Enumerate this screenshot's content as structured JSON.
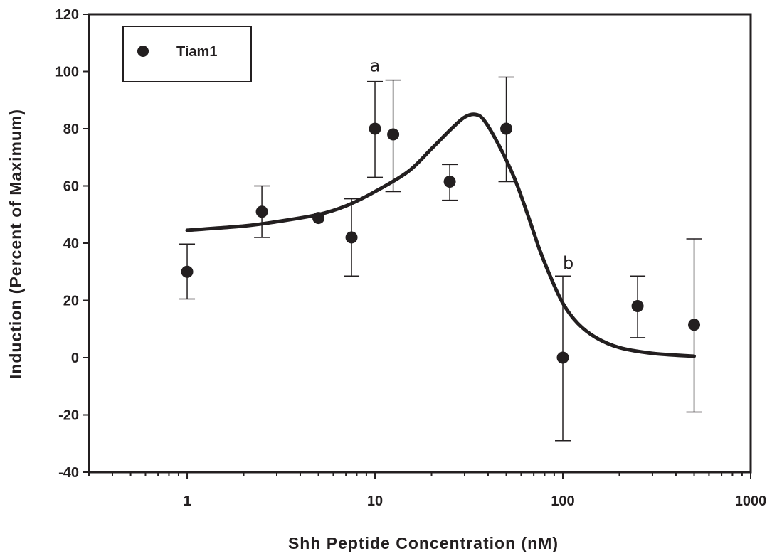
{
  "chart_data": {
    "type": "scatter",
    "title": "",
    "xlabel": "Shh Peptide Concentration (nM)",
    "ylabel": "Induction (Percent of Maximum)",
    "xscale": "log",
    "xlim": [
      0.3,
      1000
    ],
    "ylim": [
      -40,
      120
    ],
    "xticks": [
      1,
      10,
      100,
      1000
    ],
    "xtick_labels": [
      "1",
      "10",
      "100",
      "1000"
    ],
    "yticks": [
      -40,
      -20,
      0,
      20,
      40,
      60,
      80,
      100,
      120
    ],
    "ytick_labels": [
      "-40",
      "-20",
      "0",
      "20",
      "40",
      "60",
      "80",
      "100",
      "120"
    ],
    "grid": false,
    "legend_position": "top-left",
    "series": [
      {
        "name": "Tiam1",
        "color": "#231f20",
        "marker": "circle",
        "points": [
          {
            "x": 1,
            "y": 30,
            "err_low": 20.5,
            "err_high": 39.7
          },
          {
            "x": 2.5,
            "y": 51,
            "err_low": 42,
            "err_high": 60
          },
          {
            "x": 5,
            "y": 48.8,
            "err_low": 48.8,
            "err_high": 48.8
          },
          {
            "x": 7.5,
            "y": 42,
            "err_low": 28.5,
            "err_high": 55.5
          },
          {
            "x": 10,
            "y": 80,
            "err_low": 63,
            "err_high": 96.5
          },
          {
            "x": 12.5,
            "y": 78,
            "err_low": 58,
            "err_high": 97
          },
          {
            "x": 25,
            "y": 61.5,
            "err_low": 55,
            "err_high": 67.5
          },
          {
            "x": 50,
            "y": 80,
            "err_low": 61.5,
            "err_high": 98
          },
          {
            "x": 100,
            "y": 0,
            "err_low": -29,
            "err_high": 28.5
          },
          {
            "x": 250,
            "y": 18,
            "err_low": 7,
            "err_high": 28.5
          },
          {
            "x": 500,
            "y": 11.5,
            "err_low": -19,
            "err_high": 41.5
          }
        ]
      }
    ],
    "fit_curve": {
      "color": "#231f20",
      "points": [
        {
          "x": 1,
          "y": 44.5
        },
        {
          "x": 2,
          "y": 46
        },
        {
          "x": 3,
          "y": 47.5
        },
        {
          "x": 5,
          "y": 50
        },
        {
          "x": 7,
          "y": 53
        },
        {
          "x": 10,
          "y": 58
        },
        {
          "x": 15,
          "y": 65
        },
        {
          "x": 20,
          "y": 73
        },
        {
          "x": 26,
          "y": 80.5
        },
        {
          "x": 30,
          "y": 84
        },
        {
          "x": 34,
          "y": 85
        },
        {
          "x": 38,
          "y": 83
        },
        {
          "x": 45,
          "y": 75
        },
        {
          "x": 55,
          "y": 63
        },
        {
          "x": 65,
          "y": 50
        },
        {
          "x": 75,
          "y": 38
        },
        {
          "x": 85,
          "y": 29
        },
        {
          "x": 100,
          "y": 19
        },
        {
          "x": 120,
          "y": 12
        },
        {
          "x": 150,
          "y": 7
        },
        {
          "x": 200,
          "y": 3.5
        },
        {
          "x": 300,
          "y": 1.5
        },
        {
          "x": 500,
          "y": 0.5
        }
      ]
    },
    "annotations": [
      {
        "text": "a",
        "x": 10,
        "y": 100
      },
      {
        "text": "b",
        "x": 100,
        "y": 31
      }
    ]
  }
}
